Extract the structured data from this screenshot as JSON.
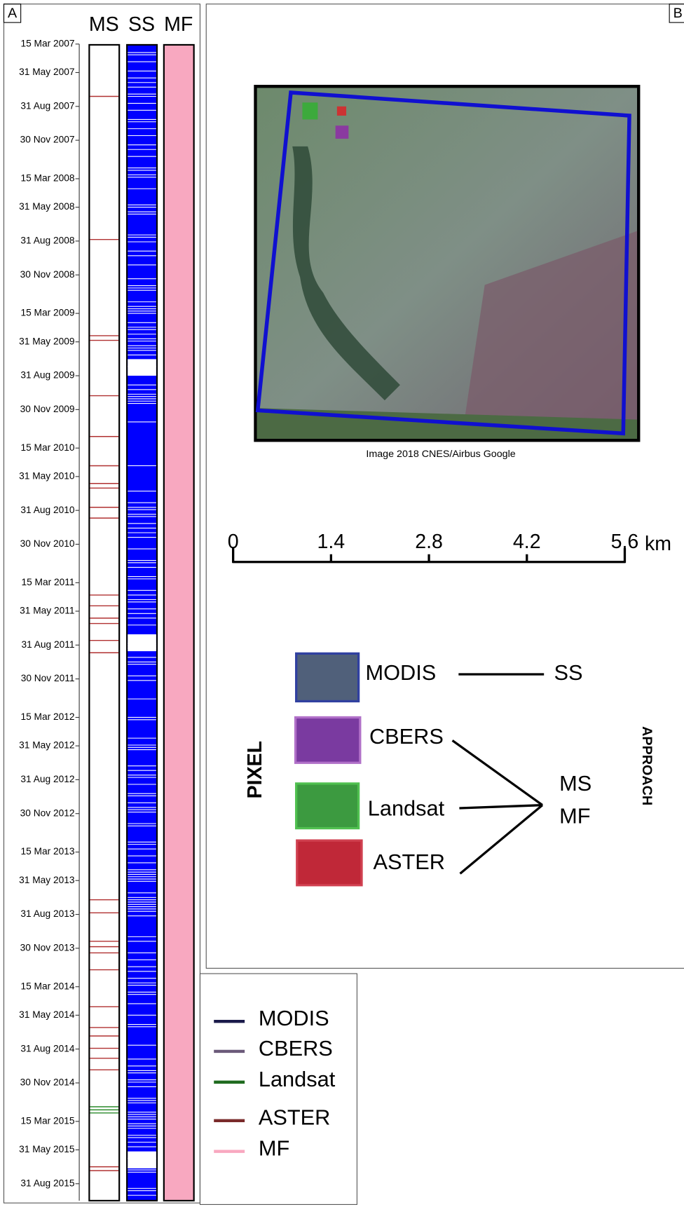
{
  "panel_a": {
    "label": "A",
    "columns": [
      "MS",
      "SS",
      "MF"
    ],
    "dates": [
      "15 Mar 2007",
      "31 May 2007",
      "31 Aug 2007",
      "30 Nov 2007",
      "15 Mar 2008",
      "31 May 2008",
      "31 Aug 2008",
      "30 Nov 2008",
      "15 Mar 2009",
      "31 May 2009",
      "31 Aug 2009",
      "30 Nov 2009",
      "15 Mar 2010",
      "31 May 2010",
      "31 Aug 2010",
      "30 Nov 2010",
      "15 Mar 2011",
      "31 May 2011",
      "31 Aug 2011",
      "30 Nov 2011",
      "15 Mar 2012",
      "31 May 2012",
      "31 Aug 2012",
      "30 Nov 2012",
      "15 Mar 2013",
      "31 May 2013",
      "31 Aug 2013",
      "30 Nov 2013",
      "15 Mar 2014",
      "31 May 2014",
      "31 Aug 2014",
      "30 Nov 2014",
      "15 Mar 2015",
      "31 May 2015",
      "31 Aug 2015"
    ]
  },
  "panel_b": {
    "label": "B",
    "image_credit": "Image 2018 CNES/Airbus   Google",
    "scale_bar": {
      "ticks": [
        "0",
        "1.4",
        "2.8",
        "4.2",
        "5.6"
      ],
      "unit": "km"
    },
    "pixel_label": "PIXEL",
    "approach_label": "APPROACH",
    "sensors": [
      "MODIS",
      "CBERS",
      "Landsat",
      "ASTER"
    ],
    "approaches": [
      "SS",
      "MS",
      "MF"
    ]
  },
  "legend": [
    "MODIS",
    "CBERS",
    "Landsat",
    "ASTER",
    "MF"
  ]
}
